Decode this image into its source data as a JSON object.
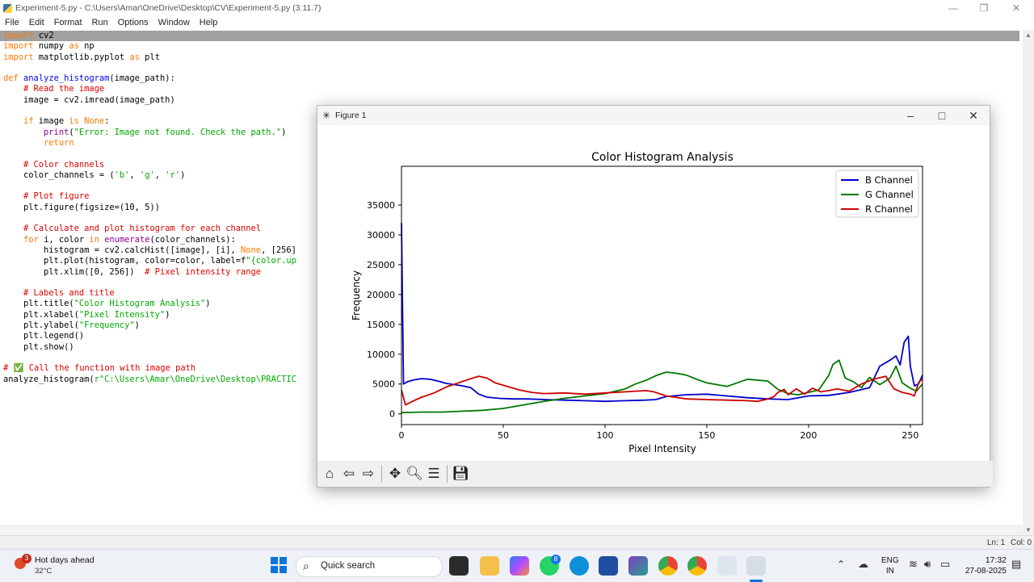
{
  "idle": {
    "title": "Experiment-5.py - C:\\Users\\Amar\\OneDrive\\Desktop\\CV\\Experiment-5.py (3.11.7)",
    "menu": [
      "File",
      "Edit",
      "Format",
      "Run",
      "Options",
      "Window",
      "Help"
    ],
    "status": {
      "ln": "Ln: 1",
      "col": "Col: 0"
    },
    "code_lines": [
      "import cv2",
      "import numpy as np",
      "import matplotlib.pyplot as plt",
      "",
      "def analyze_histogram(image_path):",
      "    # Read the image",
      "    image = cv2.imread(image_path)",
      "",
      "    if image is None:",
      "        print(\"Error: Image not found. Check the path.\")",
      "        return",
      "",
      "    # Color channels",
      "    color_channels = ('b', 'g', 'r')",
      "",
      "    # Plot figure",
      "    plt.figure(figsize=(10, 5))",
      "",
      "    # Calculate and plot histogram for each channel",
      "    for i, color in enumerate(color_channels):",
      "        histogram = cv2.calcHist([image], [i], None, [256]",
      "        plt.plot(histogram, color=color, label=f\"{color.up",
      "        plt.xlim([0, 256])  # Pixel intensity range",
      "",
      "    # Labels and title",
      "    plt.title(\"Color Histogram Analysis\")",
      "    plt.xlabel(\"Pixel Intensity\")",
      "    plt.ylabel(\"Frequency\")",
      "    plt.legend()",
      "    plt.show()",
      "",
      "# ✅ Call the function with image path",
      "analyze_histogram(r\"C:\\Users\\Amar\\OneDrive\\Desktop\\PRACTIC"
    ]
  },
  "figure": {
    "window_title": "Figure 1",
    "toolbar": [
      "home-icon",
      "back-icon",
      "forward-icon",
      "pan-icon",
      "zoom-icon",
      "configure-icon",
      "save-icon"
    ]
  },
  "chart_data": {
    "type": "line",
    "title": "Color Histogram Analysis",
    "xlabel": "Pixel Intensity",
    "ylabel": "Frequency",
    "xlim": [
      0,
      256
    ],
    "ylim": [
      -1800,
      41500
    ],
    "xticks": [
      0,
      50,
      100,
      150,
      200,
      250
    ],
    "yticks": [
      0,
      5000,
      10000,
      15000,
      20000,
      25000,
      30000,
      35000
    ],
    "legend": "top-right",
    "grid": false,
    "series": [
      {
        "name": "B Channel",
        "color": "#0000cc",
        "x": [
          0,
          1,
          3,
          6,
          10,
          14,
          18,
          22,
          26,
          30,
          34,
          38,
          42,
          48,
          55,
          62,
          70,
          80,
          90,
          100,
          110,
          120,
          125,
          130,
          140,
          150,
          160,
          170,
          180,
          190,
          200,
          210,
          220,
          230,
          235,
          240,
          243,
          245,
          247,
          249,
          250,
          252,
          254,
          256
        ],
        "y": [
          32000,
          5000,
          5400,
          5700,
          5900,
          5800,
          5500,
          5100,
          4900,
          4700,
          4400,
          3300,
          2800,
          2600,
          2500,
          2500,
          2400,
          2300,
          2200,
          2100,
          2200,
          2300,
          2400,
          2900,
          3200,
          3300,
          3000,
          2700,
          2500,
          2400,
          3000,
          3100,
          3600,
          4400,
          8000,
          9000,
          9700,
          8200,
          12000,
          13000,
          8000,
          4700,
          5000,
          6500
        ]
      },
      {
        "name": "G Channel",
        "color": "#007700",
        "x": [
          0,
          10,
          20,
          30,
          40,
          50,
          60,
          70,
          80,
          90,
          100,
          110,
          115,
          120,
          125,
          130,
          135,
          140,
          145,
          150,
          160,
          170,
          180,
          185,
          190,
          195,
          200,
          205,
          210,
          212,
          215,
          218,
          222,
          226,
          230,
          235,
          240,
          243,
          246,
          250,
          253,
          256
        ],
        "y": [
          200,
          300,
          300,
          450,
          600,
          900,
          1500,
          2100,
          2600,
          3000,
          3400,
          4200,
          5000,
          5600,
          6400,
          7000,
          6800,
          6500,
          5800,
          5200,
          4600,
          5800,
          5500,
          4100,
          3400,
          3200,
          3600,
          4000,
          6500,
          8300,
          9000,
          6000,
          5400,
          4400,
          6100,
          4900,
          6000,
          8000,
          5200,
          4300,
          3800,
          5000
        ]
      },
      {
        "name": "R Channel",
        "color": "#cc0000",
        "x": [
          0,
          2,
          6,
          10,
          16,
          22,
          28,
          34,
          38,
          42,
          46,
          52,
          58,
          64,
          70,
          80,
          90,
          100,
          110,
          120,
          124,
          130,
          136,
          140,
          150,
          160,
          170,
          175,
          180,
          183,
          185,
          188,
          190,
          194,
          198,
          202,
          206,
          210,
          214,
          220,
          226,
          232,
          238,
          242,
          246,
          250,
          252,
          254,
          256
        ],
        "y": [
          4000,
          1500,
          2200,
          2800,
          3500,
          4500,
          5200,
          5900,
          6300,
          6000,
          5200,
          4600,
          4000,
          3600,
          3400,
          3500,
          3300,
          3500,
          3700,
          3900,
          3700,
          3000,
          2700,
          2500,
          2400,
          2300,
          2200,
          2100,
          2500,
          2900,
          3600,
          4100,
          3200,
          4200,
          3300,
          4300,
          3700,
          3900,
          4200,
          3800,
          5000,
          5800,
          6300,
          4200,
          3600,
          3300,
          3000,
          5200,
          5900
        ]
      }
    ]
  }
}
